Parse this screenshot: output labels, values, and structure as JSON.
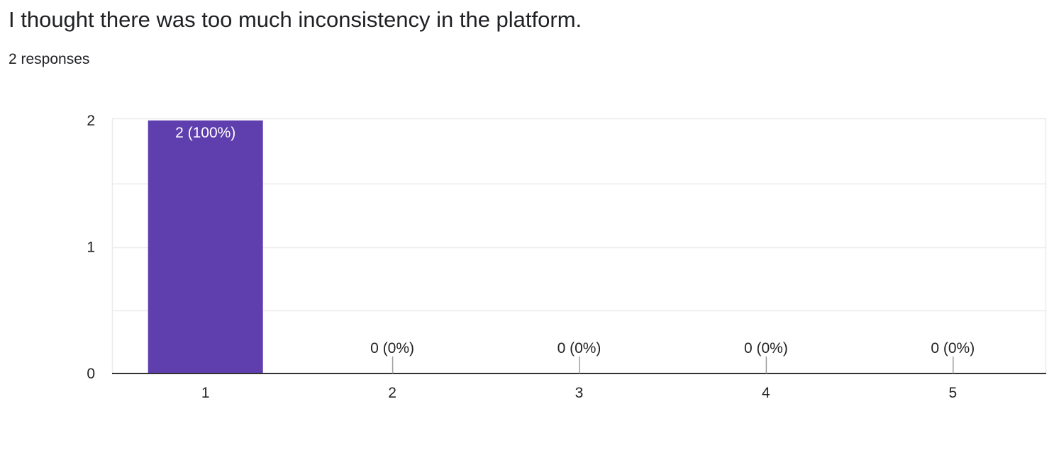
{
  "question": {
    "title": "I thought there was too much inconsistency in the platform.",
    "responses": "2 responses"
  },
  "colors": {
    "bar": "#5f3fae",
    "grid": "#ebebeb",
    "axis": "#333333",
    "leader": "#9e9e9e",
    "label_inside": "#ffffff",
    "label_outside": "#222222"
  },
  "chart_data": {
    "type": "bar",
    "categories": [
      "1",
      "2",
      "3",
      "4",
      "5"
    ],
    "values": [
      2,
      0,
      0,
      0,
      0
    ],
    "data_labels": [
      "2 (100%)",
      "0 (0%)",
      "0 (0%)",
      "0 (0%)",
      "0 (0%)"
    ],
    "y_ticks": [
      0,
      1,
      2
    ],
    "ylim": [
      0,
      2
    ],
    "grid": true,
    "legend": "none"
  }
}
